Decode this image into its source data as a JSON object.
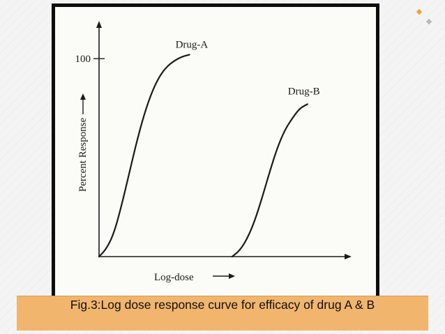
{
  "slide": {
    "caption": "Fig.3:Log dose response curve for efficacy of drug A & B",
    "accent_colors": [
      "#f0a23a",
      "#b8b8b8"
    ]
  },
  "chart_data": {
    "type": "line",
    "title": "",
    "xlabel": "Log-dose",
    "ylabel": "Percent Response",
    "y_tick_labels": [
      "100"
    ],
    "y_ticks": [
      100
    ],
    "ylim": [
      0,
      118
    ],
    "xlim": [
      0,
      10
    ],
    "grid": false,
    "legend": "none (series labelled at curve tops)",
    "line_color": "#1a1a1a",
    "series": [
      {
        "name": "Drug-A",
        "x": [
          0.0,
          0.3,
          0.6,
          0.9,
          1.2,
          1.5,
          1.8,
          2.1,
          2.4,
          2.7,
          3.0,
          3.3,
          3.6
        ],
        "y": [
          0,
          4,
          12,
          26,
          42,
          58,
          72,
          83,
          91,
          96,
          99,
          101,
          102
        ]
      },
      {
        "name": "Drug-B",
        "x": [
          5.3,
          5.6,
          5.9,
          6.2,
          6.5,
          6.8,
          7.1,
          7.4,
          7.7,
          8.0,
          8.3
        ],
        "y": [
          0,
          3,
          9,
          18,
          30,
          43,
          55,
          64,
          70,
          75,
          77
        ]
      }
    ]
  }
}
